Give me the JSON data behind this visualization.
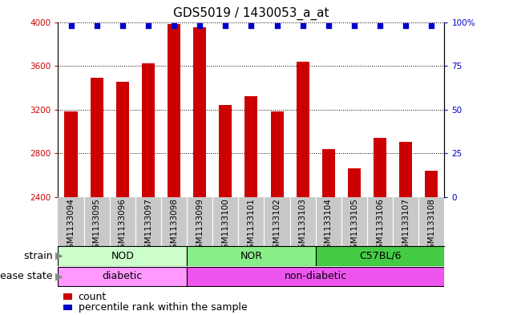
{
  "title": "GDS5019 / 1430053_a_at",
  "samples": [
    "GSM1133094",
    "GSM1133095",
    "GSM1133096",
    "GSM1133097",
    "GSM1133098",
    "GSM1133099",
    "GSM1133100",
    "GSM1133101",
    "GSM1133102",
    "GSM1133103",
    "GSM1133104",
    "GSM1133105",
    "GSM1133106",
    "GSM1133107",
    "GSM1133108"
  ],
  "counts": [
    3180,
    3490,
    3450,
    3620,
    3980,
    3950,
    3240,
    3320,
    3180,
    3640,
    2840,
    2660,
    2940,
    2900,
    2640
  ],
  "percentiles": [
    98,
    98,
    98,
    98,
    98,
    98,
    98,
    98,
    98,
    98,
    98,
    98,
    98,
    98,
    98
  ],
  "ylim_left": [
    2400,
    4000
  ],
  "ylim_right": [
    0,
    100
  ],
  "yticks_left": [
    2400,
    2800,
    3200,
    3600,
    4000
  ],
  "yticks_right": [
    0,
    25,
    50,
    75,
    100
  ],
  "bar_color": "#cc0000",
  "dot_color": "#0000cc",
  "bar_width": 0.5,
  "groups": [
    {
      "label": "NOD",
      "start": 0,
      "end": 4,
      "color": "#ccffcc"
    },
    {
      "label": "NOR",
      "start": 5,
      "end": 9,
      "color": "#88ee88"
    },
    {
      "label": "C57BL/6",
      "start": 10,
      "end": 14,
      "color": "#44cc44"
    }
  ],
  "disease_states": [
    {
      "label": "diabetic",
      "start": 0,
      "end": 4,
      "color": "#ff99ff"
    },
    {
      "label": "non-diabetic",
      "start": 5,
      "end": 14,
      "color": "#ee55ee"
    }
  ],
  "strain_label": "strain",
  "disease_label": "disease state",
  "legend_count_label": "count",
  "legend_percentile_label": "percentile rank within the sample",
  "tick_bg_color": "#c8c8c8",
  "title_fontsize": 11,
  "label_fontsize": 9,
  "tick_fontsize": 7.5,
  "row_fontsize": 9
}
